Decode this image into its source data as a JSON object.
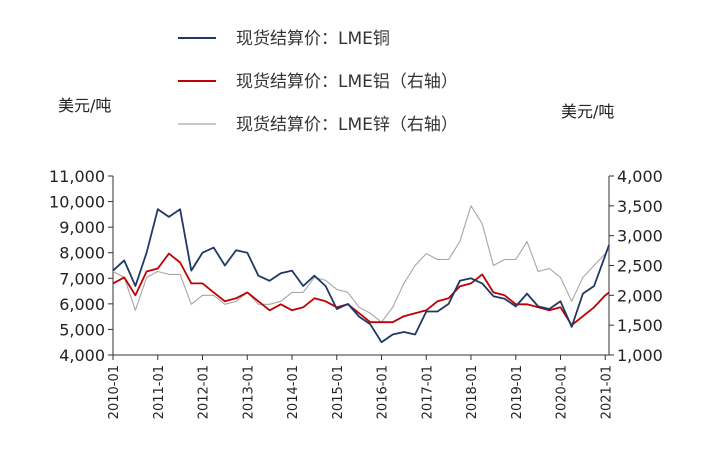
{
  "chart_data": {
    "type": "line",
    "title": "",
    "left_unit": "美元/吨",
    "right_unit": "美元/吨",
    "ylim_left": [
      4000,
      11000
    ],
    "ylim_right": [
      1000,
      4000
    ],
    "yticks_left": [
      "4,000",
      "5,000",
      "6,000",
      "7,000",
      "8,000",
      "9,000",
      "10,000",
      "11,000"
    ],
    "yticks_right": [
      "1,000",
      "1,500",
      "2,000",
      "2,500",
      "3,000",
      "3,500",
      "4,000"
    ],
    "xlim": [
      "2010-01",
      "2021-02"
    ],
    "xticks": [
      "2010-01",
      "2011-01",
      "2012-01",
      "2013-01",
      "2014-01",
      "2015-01",
      "2016-01",
      "2017-01",
      "2018-01",
      "2019-01",
      "2020-01",
      "2021-01"
    ],
    "legend_position": "top-center",
    "grid": false,
    "series": [
      {
        "name": "现货结算价：LME铜",
        "axis": "left",
        "color": "#1f3864",
        "x": [
          "2010-01",
          "2010-04",
          "2010-07",
          "2010-10",
          "2011-01",
          "2011-04",
          "2011-07",
          "2011-10",
          "2012-01",
          "2012-04",
          "2012-07",
          "2012-10",
          "2013-01",
          "2013-04",
          "2013-07",
          "2013-10",
          "2014-01",
          "2014-04",
          "2014-07",
          "2014-10",
          "2015-01",
          "2015-04",
          "2015-07",
          "2015-10",
          "2016-01",
          "2016-04",
          "2016-07",
          "2016-10",
          "2017-01",
          "2017-04",
          "2017-07",
          "2017-10",
          "2018-01",
          "2018-04",
          "2018-07",
          "2018-10",
          "2019-01",
          "2019-04",
          "2019-07",
          "2019-10",
          "2020-01",
          "2020-04",
          "2020-07",
          "2020-10",
          "2021-01",
          "2021-02"
        ],
        "values": [
          7300,
          7700,
          6700,
          8000,
          9700,
          9400,
          9700,
          7300,
          8000,
          8200,
          7500,
          8100,
          8000,
          7100,
          6900,
          7200,
          7300,
          6700,
          7100,
          6700,
          5800,
          6000,
          5500,
          5200,
          4500,
          4800,
          4900,
          4800,
          5700,
          5700,
          6000,
          6900,
          7000,
          6800,
          6300,
          6200,
          5900,
          6400,
          5900,
          5800,
          6100,
          5100,
          6400,
          6700,
          7900,
          8300
        ]
      },
      {
        "name": "现货结算价：LME铝（右轴）",
        "axis": "right",
        "color": "#c00000",
        "x": [
          "2010-01",
          "2010-04",
          "2010-07",
          "2010-10",
          "2011-01",
          "2011-04",
          "2011-07",
          "2011-10",
          "2012-01",
          "2012-04",
          "2012-07",
          "2012-10",
          "2013-01",
          "2013-04",
          "2013-07",
          "2013-10",
          "2014-01",
          "2014-04",
          "2014-07",
          "2014-10",
          "2015-01",
          "2015-04",
          "2015-07",
          "2015-10",
          "2016-01",
          "2016-04",
          "2016-07",
          "2016-10",
          "2017-01",
          "2017-04",
          "2017-07",
          "2017-10",
          "2018-01",
          "2018-04",
          "2018-07",
          "2018-10",
          "2019-01",
          "2019-04",
          "2019-07",
          "2019-10",
          "2020-01",
          "2020-04",
          "2020-07",
          "2020-10",
          "2021-01",
          "2021-02"
        ],
        "values": [
          2200,
          2300,
          2000,
          2400,
          2450,
          2700,
          2550,
          2200,
          2200,
          2050,
          1900,
          1950,
          2050,
          1900,
          1750,
          1850,
          1750,
          1800,
          1950,
          1900,
          1800,
          1850,
          1700,
          1550,
          1550,
          1550,
          1650,
          1700,
          1750,
          1900,
          1950,
          2150,
          2200,
          2350,
          2050,
          2000,
          1850,
          1850,
          1800,
          1750,
          1800,
          1500,
          1650,
          1800,
          2000,
          2050
        ]
      },
      {
        "name": "现货结算价：LME锌（右轴）",
        "axis": "right",
        "color": "#a6a6a6",
        "x": [
          "2010-01",
          "2010-04",
          "2010-07",
          "2010-10",
          "2011-01",
          "2011-04",
          "2011-07",
          "2011-10",
          "2012-01",
          "2012-04",
          "2012-07",
          "2012-10",
          "2013-01",
          "2013-04",
          "2013-07",
          "2013-10",
          "2014-01",
          "2014-04",
          "2014-07",
          "2014-10",
          "2015-01",
          "2015-04",
          "2015-07",
          "2015-10",
          "2016-01",
          "2016-04",
          "2016-07",
          "2016-10",
          "2017-01",
          "2017-04",
          "2017-07",
          "2017-10",
          "2018-01",
          "2018-04",
          "2018-07",
          "2018-10",
          "2019-01",
          "2019-04",
          "2019-07",
          "2019-10",
          "2020-01",
          "2020-04",
          "2020-07",
          "2020-10",
          "2021-01",
          "2021-02"
        ],
        "values": [
          2400,
          2300,
          1750,
          2300,
          2400,
          2350,
          2350,
          1850,
          2000,
          2000,
          1850,
          1900,
          2050,
          1850,
          1850,
          1900,
          2050,
          2050,
          2300,
          2250,
          2100,
          2050,
          1800,
          1700,
          1550,
          1800,
          2200,
          2500,
          2700,
          2600,
          2600,
          2900,
          3500,
          3200,
          2500,
          2600,
          2600,
          2900,
          2400,
          2450,
          2300,
          1900,
          2300,
          2500,
          2700,
          2800
        ]
      }
    ]
  }
}
